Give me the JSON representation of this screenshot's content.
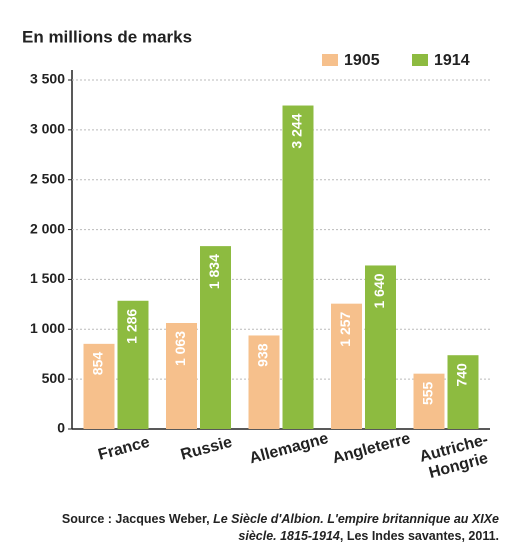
{
  "chart_data": {
    "type": "bar",
    "title": "En millions de marks",
    "categories": [
      "France",
      "Russie",
      "Allemagne",
      "Angleterre",
      "Autriche-Hongrie"
    ],
    "series": [
      {
        "name": "1905",
        "color": "#f6c08c",
        "values": [
          854,
          1063,
          938,
          1257,
          555
        ],
        "value_labels": [
          "854",
          "1 063",
          "938",
          "1 257",
          "555"
        ]
      },
      {
        "name": "1914",
        "color": "#8dbb40",
        "values": [
          1286,
          1834,
          3244,
          1640,
          740
        ],
        "value_labels": [
          "1 286",
          "1 834",
          "3 244",
          "1 640",
          "740"
        ]
      }
    ],
    "ylim": [
      0,
      3500
    ],
    "yticks": [
      0,
      500,
      {
        "value": 1000,
        "label": "1 000"
      },
      {
        "value": 1500,
        "label": "1 500"
      },
      {
        "value": 2000,
        "label": "2 000"
      },
      {
        "value": 2500,
        "label": "2 500"
      },
      {
        "value": 3000,
        "label": "3 000"
      },
      {
        "value": 3500,
        "label": "3 500"
      }
    ],
    "grid": true,
    "legend": "top-right",
    "source": [
      {
        "text": "Source : Jacques Weber, ",
        "italic": false
      },
      {
        "text": "Le Siècle d'Albion. L'empire britannique au XIXe siècle. 1815-1914",
        "italic": true
      },
      {
        "text": ", Les Indes savantes, 2011.",
        "italic": false
      }
    ]
  }
}
